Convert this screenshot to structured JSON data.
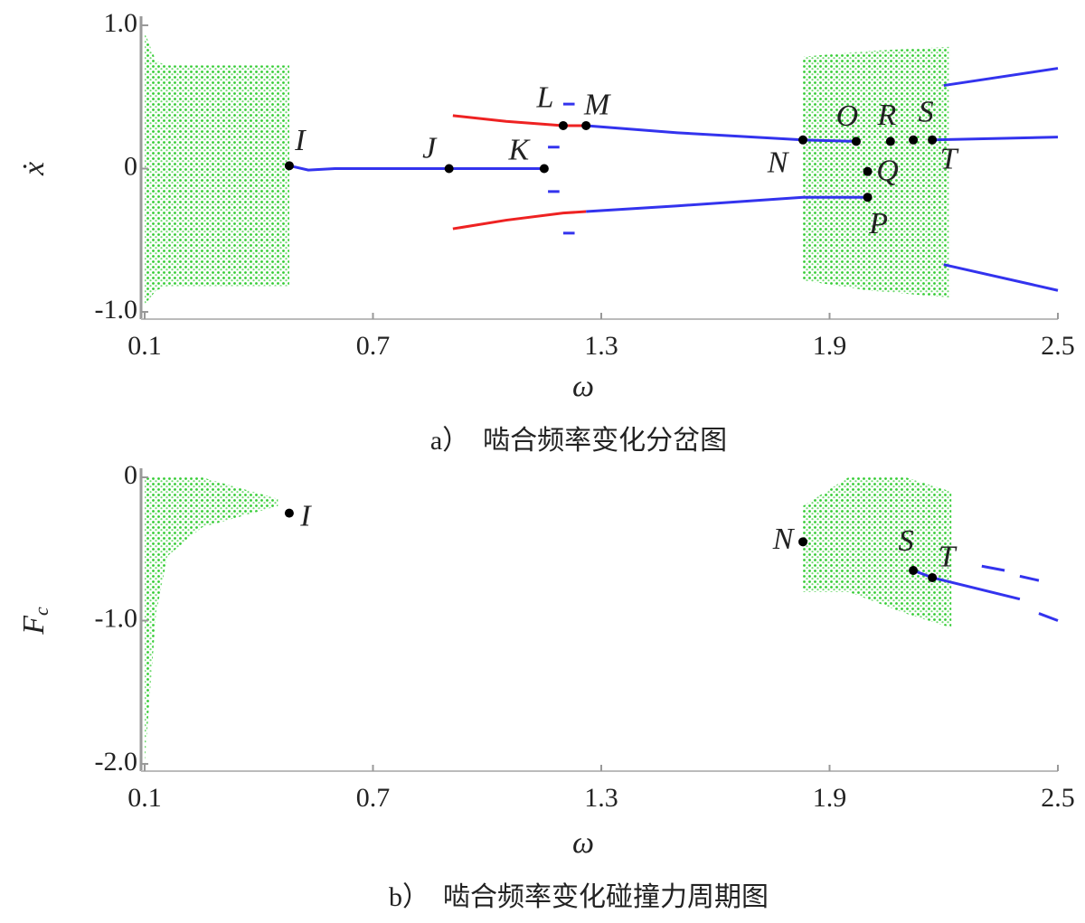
{
  "chart_data": [
    {
      "type": "bifurcation",
      "xlabel": "ω",
      "ylabel": "ẋ",
      "caption": "a）　啮合频率变化分岔图",
      "xlim": [
        0.1,
        2.5
      ],
      "xticks": [
        0.1,
        0.7,
        1.3,
        1.9,
        2.5
      ],
      "ylim": [
        -1,
        1
      ],
      "yticks": [
        {
          "value": 1,
          "label": "1.0"
        },
        0,
        {
          "value": -1,
          "label": "-1.0"
        }
      ],
      "bands": [
        {
          "color": "#33cc33",
          "x": [
            0.1,
            0.13,
            0.16,
            0.48
          ],
          "ymax": [
            0.95,
            0.75,
            0.72,
            0.72
          ],
          "ymin": [
            -0.95,
            -0.85,
            -0.82,
            -0.82
          ]
        },
        {
          "color": "#33cc33",
          "x": [
            1.83,
            2.0,
            2.215
          ],
          "ymax": [
            0.78,
            0.82,
            0.85
          ],
          "ymin": [
            -0.78,
            -0.85,
            -0.9
          ]
        }
      ],
      "series": [
        {
          "color": "#3333ee",
          "x": [
            0.48,
            0.53,
            0.6,
            0.8,
            1.0,
            1.15
          ],
          "values": [
            0.02,
            -0.01,
            0,
            0,
            0,
            0
          ]
        },
        {
          "color": "#ee2222",
          "x": [
            0.91,
            1.05,
            1.2,
            1.26
          ],
          "values": [
            0.37,
            0.33,
            0.3,
            0.3
          ]
        },
        {
          "color": "#ee2222",
          "x": [
            0.91,
            1.05,
            1.2,
            1.26
          ],
          "values": [
            -0.42,
            -0.36,
            -0.31,
            -0.3
          ]
        },
        {
          "color": "#3333ee",
          "x": [
            1.26,
            1.5,
            1.83,
            1.97
          ],
          "values": [
            0.3,
            0.25,
            0.2,
            0.19
          ]
        },
        {
          "color": "#3333ee",
          "x": [
            1.26,
            1.5,
            1.83,
            2.0
          ],
          "values": [
            -0.3,
            -0.26,
            -0.2,
            -0.2
          ]
        },
        {
          "color": "#3333ee",
          "x": [
            2.2,
            2.5
          ],
          "values": [
            0.58,
            0.7
          ]
        },
        {
          "color": "#3333ee",
          "x": [
            2.17,
            2.5
          ],
          "values": [
            0.2,
            0.22
          ]
        },
        {
          "color": "#3333ee",
          "x": [
            2.2,
            2.5
          ],
          "values": [
            -0.67,
            -0.85
          ]
        },
        {
          "color": "#3333ee",
          "x": [
            1.2,
            1.23,
            null,
            1.2,
            1.23,
            null,
            1.16,
            1.19,
            null,
            1.16,
            1.19
          ],
          "values": [
            0.45,
            0.45,
            null,
            -0.45,
            -0.45,
            null,
            0.15,
            0.15,
            null,
            -0.16,
            -0.16
          ]
        }
      ],
      "points": {
        "labels": [
          "I",
          "J",
          "K",
          "L",
          "M",
          "N",
          "O",
          "P",
          "Q",
          "R",
          "S",
          "T"
        ],
        "x": [
          0.48,
          0.9,
          1.15,
          1.2,
          1.26,
          1.83,
          1.97,
          2.0,
          2.0,
          2.06,
          2.12,
          2.17
        ],
        "values": [
          0.02,
          0,
          0,
          0.3,
          0.3,
          0.2,
          0.19,
          -0.2,
          -0.02,
          0.19,
          0.2,
          0.2
        ]
      }
    },
    {
      "type": "bifurcation",
      "xlabel": "ω",
      "ylabel": "F",
      "ylabel_sub": "c",
      "caption": "b）　啮合频率变化碰撞力周期图",
      "xlim": [
        0.1,
        2.5
      ],
      "xticks": [
        0.1,
        0.7,
        1.3,
        1.9,
        2.5
      ],
      "ylim": [
        -2,
        0
      ],
      "yticks": [
        0,
        {
          "value": -1,
          "label": "-1.0"
        },
        {
          "value": -2,
          "label": "-2.0"
        }
      ],
      "bands": [
        {
          "color": "#33cc33",
          "x": [
            0.1,
            0.13,
            0.16,
            0.25,
            0.45
          ],
          "ymax": [
            0,
            0,
            0,
            0,
            -0.15
          ],
          "ymin": [
            -2,
            -0.95,
            -0.55,
            -0.35,
            -0.2
          ]
        },
        {
          "color": "#33cc33",
          "x": [
            1.83,
            1.95,
            2.1,
            2.22
          ],
          "ymax": [
            -0.2,
            0,
            0,
            -0.1
          ],
          "ymin": [
            -0.8,
            -0.8,
            -0.95,
            -1.05
          ]
        }
      ],
      "series": [
        {
          "color": "#3333ee",
          "x": [
            2.12,
            2.17,
            2.4,
            null,
            2.45,
            2.5
          ],
          "values": [
            -0.65,
            -0.7,
            -0.85,
            null,
            -0.95,
            -1.0
          ]
        },
        {
          "color": "#3333ee",
          "x": [
            2.3,
            2.36,
            null,
            2.4,
            2.45
          ],
          "values": [
            -0.62,
            -0.65,
            null,
            -0.69,
            -0.72
          ]
        }
      ],
      "points": {
        "labels": [
          "I",
          "N",
          "S",
          "T"
        ],
        "x": [
          0.48,
          1.83,
          2.12,
          2.17
        ],
        "values": [
          -0.25,
          -0.45,
          -0.65,
          -0.7
        ]
      }
    }
  ]
}
